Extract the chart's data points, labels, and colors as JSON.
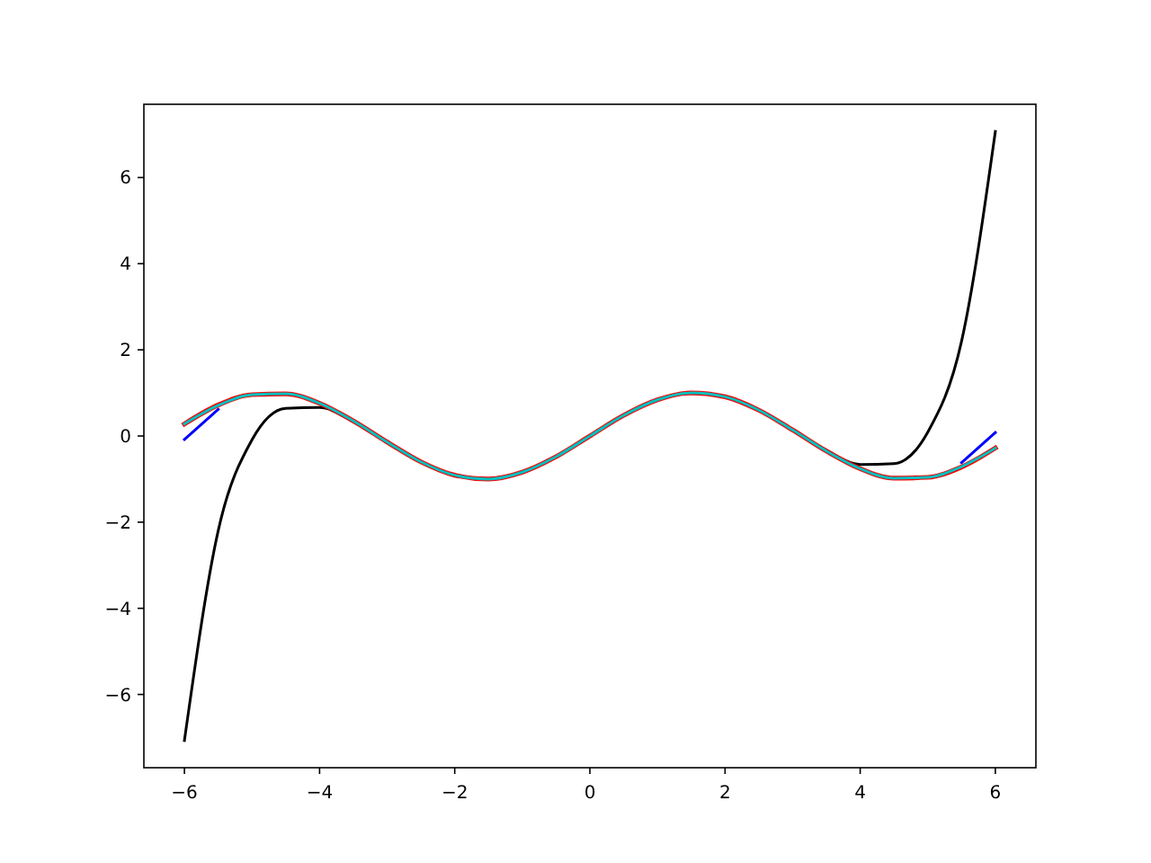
{
  "chart_data": {
    "type": "line",
    "x": [
      -6,
      -5.5,
      -5,
      -4.5,
      -4,
      -3.5,
      -3,
      -2.5,
      -2,
      -1.5,
      -1,
      -0.5,
      0,
      0.5,
      1,
      1.5,
      2,
      2.5,
      3,
      3.5,
      4,
      4.5,
      5,
      5.5,
      6
    ],
    "xlim": [
      -6.6,
      6.6
    ],
    "ylim": [
      -7.7,
      7.7
    ],
    "xticks": [
      {
        "value": -6,
        "label": "−6"
      },
      {
        "value": -4,
        "label": "−4"
      },
      {
        "value": -2,
        "label": "−2"
      },
      0,
      2,
      4,
      6
    ],
    "yticks": [
      {
        "value": -6,
        "label": "−6"
      },
      {
        "value": -4,
        "label": "−4"
      },
      {
        "value": -2,
        "label": "−2"
      },
      0,
      2,
      4,
      6
    ],
    "series": [
      {
        "color": "#000000",
        "values": [
          -7.07,
          -2.2,
          -0.09,
          0.64,
          0.66,
          0.33,
          -0.15,
          -0.6,
          -0.91,
          -1.0,
          -0.84,
          -0.48,
          0,
          0.48,
          0.84,
          1.0,
          0.91,
          0.6,
          0.15,
          -0.33,
          -0.66,
          -0.64,
          0.09,
          2.2,
          7.07
        ]
      },
      {
        "color": "#0000ff",
        "values": [
          -0.08,
          0.62,
          null,
          null,
          null,
          null,
          null,
          null,
          null,
          null,
          null,
          null,
          null,
          null,
          null,
          null,
          null,
          null,
          null,
          null,
          null,
          null,
          null,
          -0.62,
          0.08
        ]
      },
      {
        "color": "#ff0000",
        "values": [
          0.28,
          0.72,
          0.96,
          0.98,
          0.76,
          0.35,
          -0.14,
          -0.6,
          -0.91,
          -1.0,
          -0.84,
          -0.48,
          0,
          0.48,
          0.84,
          1.0,
          0.91,
          0.6,
          0.14,
          -0.35,
          -0.76,
          -0.98,
          -0.96,
          -0.72,
          -0.28
        ]
      },
      {
        "color": "#00bfbf",
        "values": [
          0.28,
          0.71,
          0.96,
          0.98,
          0.76,
          0.35,
          -0.14,
          -0.6,
          -0.91,
          -1.0,
          -0.84,
          -0.48,
          0,
          0.48,
          0.84,
          1.0,
          0.91,
          0.6,
          0.14,
          -0.35,
          -0.76,
          -0.98,
          -0.96,
          -0.71,
          -0.28
        ]
      }
    ]
  }
}
